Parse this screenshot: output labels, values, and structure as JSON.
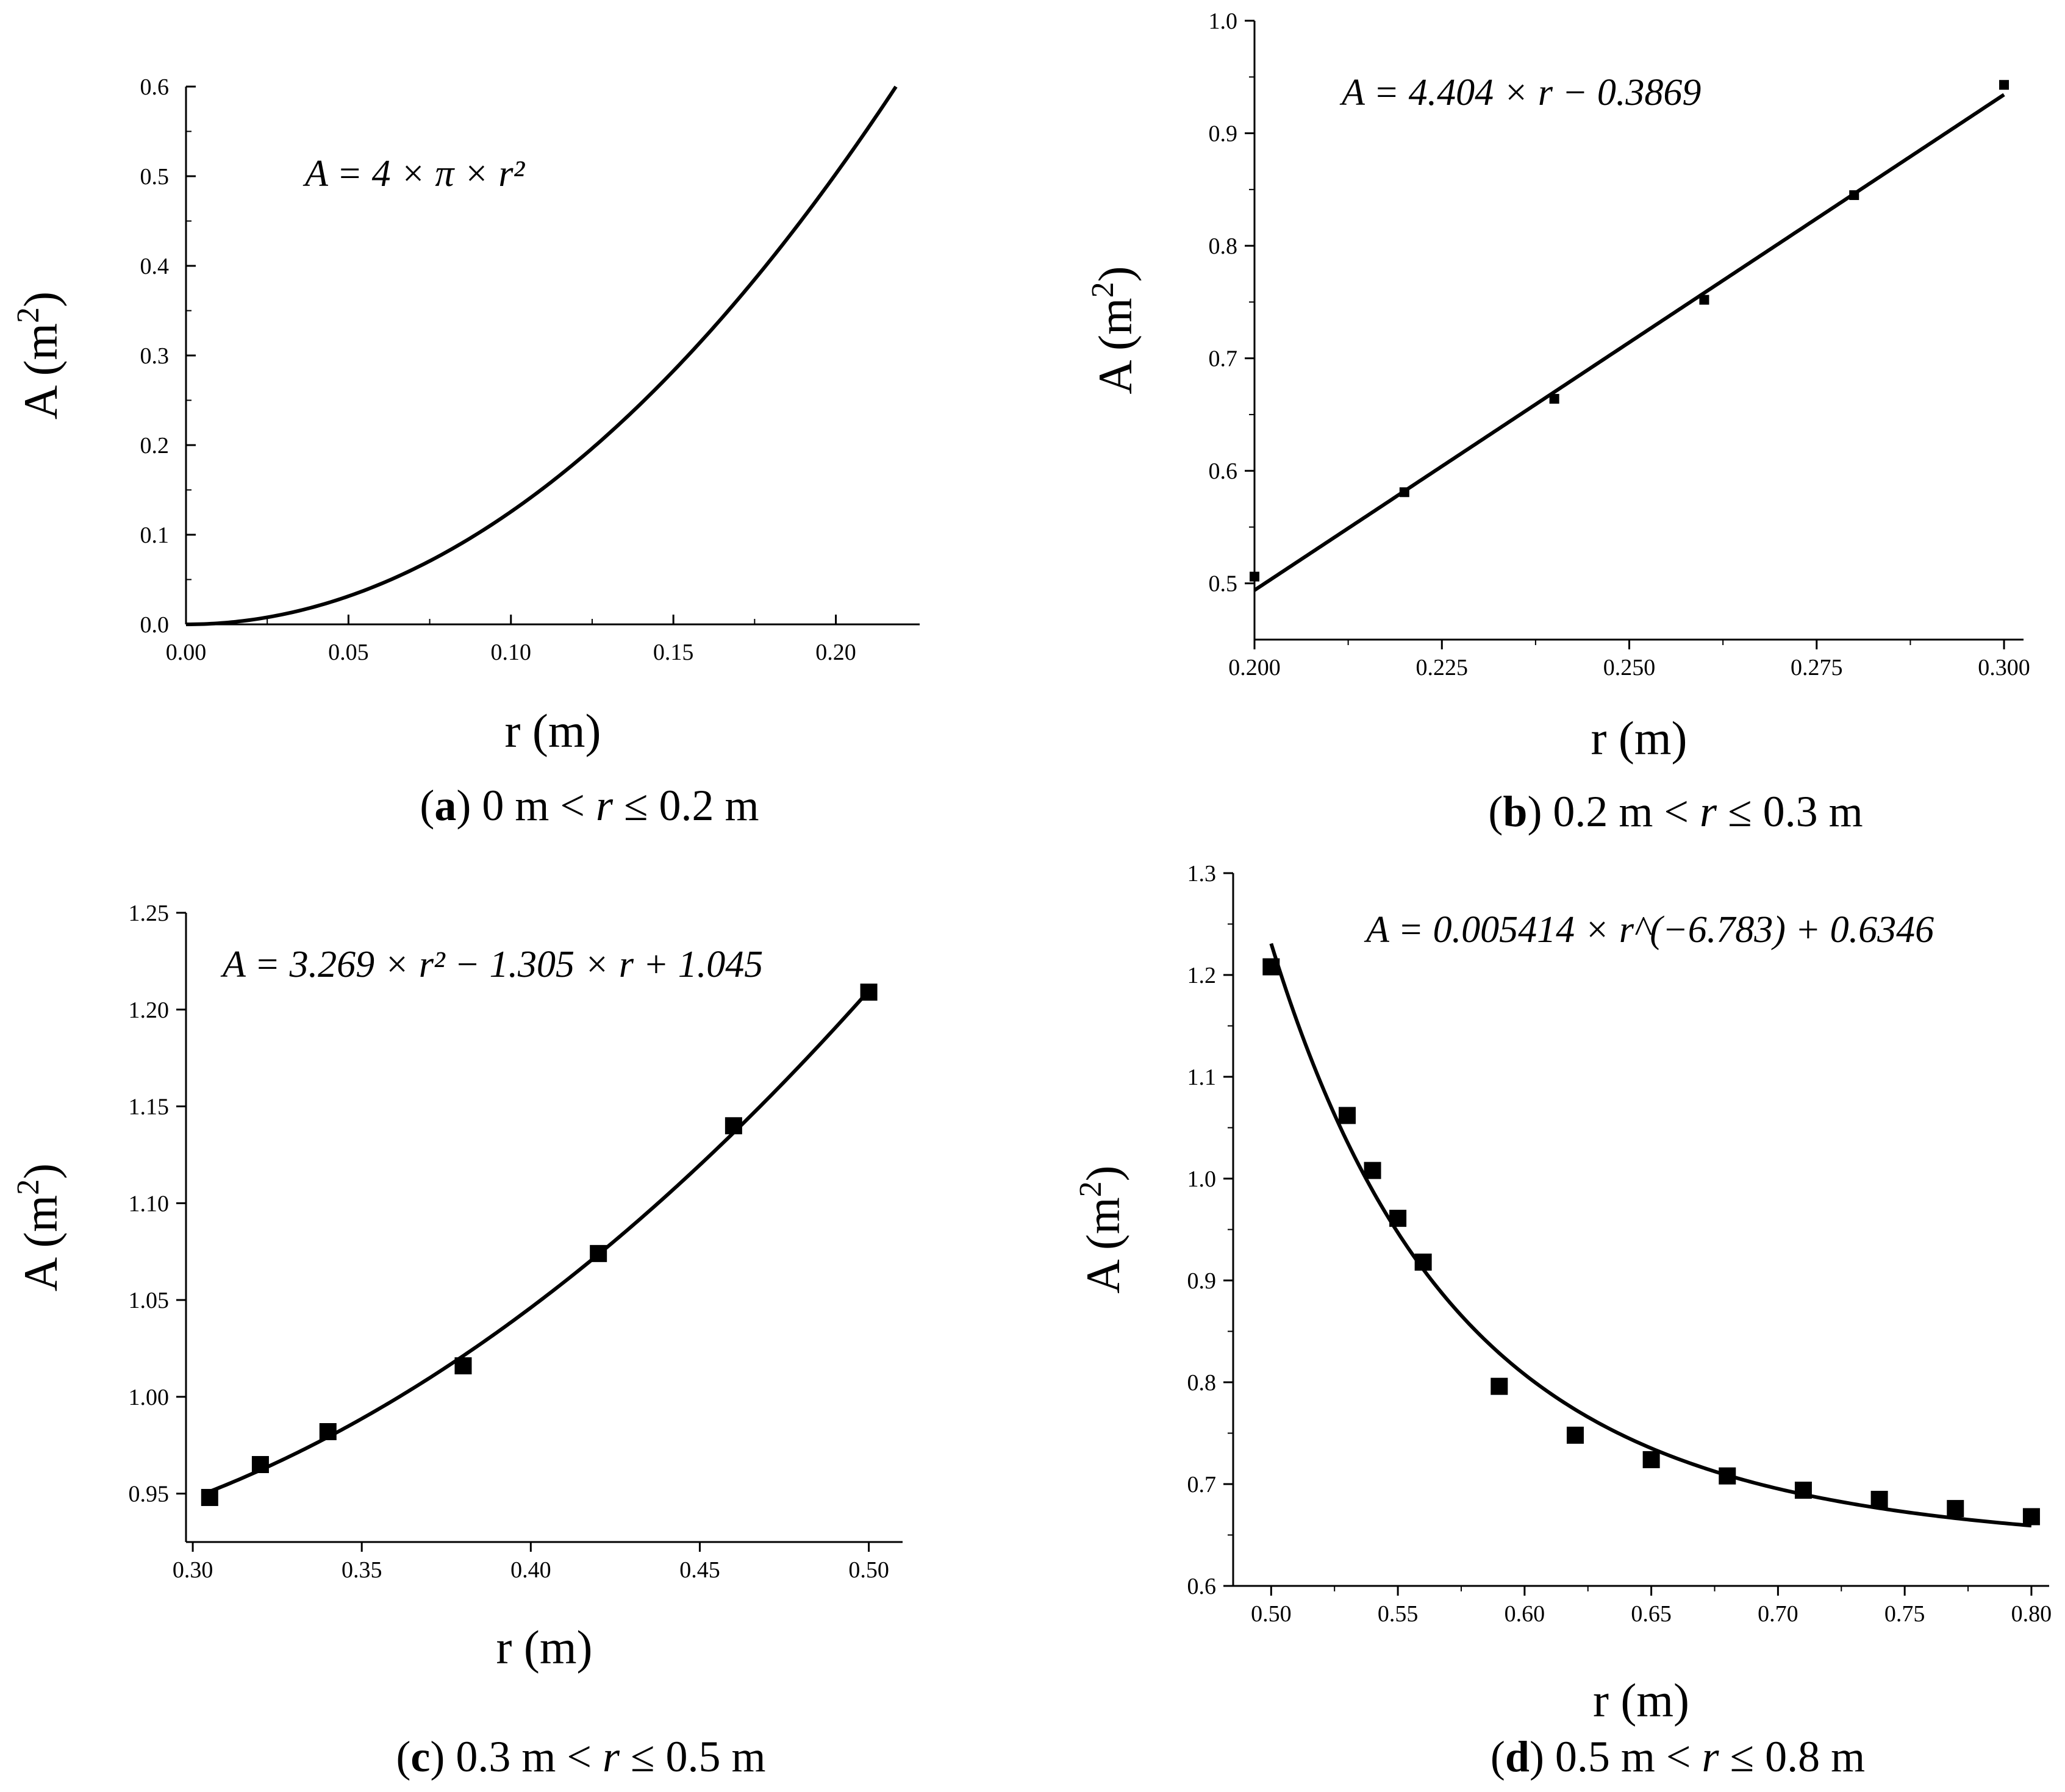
{
  "figure": {
    "background": "#ffffff",
    "ink": "#000000"
  },
  "chart_data": [
    {
      "id": "a",
      "type": "line",
      "title": "",
      "equation": "A = 4 × π × r²",
      "caption": {
        "letter": "a",
        "text": "0 m < r ≤ 0.2 m"
      },
      "xlabel": "r (m)",
      "ylabel": "A (m²)",
      "xlim": [
        0.0,
        0.2258
      ],
      "ylim": [
        0.0,
        0.6
      ],
      "xticks": [
        0.0,
        0.05,
        0.1,
        0.15,
        0.2
      ],
      "xtick_labels": [
        "0.00",
        "0.05",
        "0.10",
        "0.15",
        "0.20"
      ],
      "yticks": [
        0.0,
        0.1,
        0.2,
        0.3,
        0.4,
        0.5,
        0.6
      ],
      "ytick_labels": [
        "0.0",
        "0.1",
        "0.2",
        "0.3",
        "0.4",
        "0.5",
        "0.6"
      ],
      "grid": false,
      "curve": {
        "model": "sphere",
        "coefficients": [
          12.566
        ],
        "x_range": [
          0.0,
          0.2185
        ]
      },
      "points": []
    },
    {
      "id": "b",
      "type": "line",
      "title": "",
      "equation": "A = 4.404 × r − 0.3869",
      "caption": {
        "letter": "b",
        "text": "0.2 m < r ≤ 0.3 m"
      },
      "xlabel": "r (m)",
      "ylabel": "A (m²)",
      "xlim": [
        0.2,
        0.3026
      ],
      "ylim": [
        0.45,
        1.0
      ],
      "xticks": [
        0.2,
        0.225,
        0.25,
        0.275,
        0.3
      ],
      "xtick_labels": [
        "0.200",
        "0.225",
        "0.250",
        "0.275",
        "0.300"
      ],
      "yticks": [
        0.5,
        0.6,
        0.7,
        0.8,
        0.9,
        1.0
      ],
      "ytick_labels": [
        "0.5",
        "0.6",
        "0.7",
        "0.8",
        "0.9",
        "1.0"
      ],
      "grid": false,
      "curve": {
        "model": "linear",
        "coefficients": [
          4.404,
          -0.3869
        ],
        "x_range": [
          0.2,
          0.3
        ]
      },
      "points": [
        {
          "x": 0.2,
          "y": 0.506
        },
        {
          "x": 0.22,
          "y": 0.581
        },
        {
          "x": 0.24,
          "y": 0.664
        },
        {
          "x": 0.26,
          "y": 0.752
        },
        {
          "x": 0.28,
          "y": 0.845
        },
        {
          "x": 0.3,
          "y": 0.943
        }
      ]
    },
    {
      "id": "c",
      "type": "line",
      "title": "",
      "equation": "A = 3.269 × r² − 1.305 × r + 1.045",
      "caption": {
        "letter": "c",
        "text": "0.3 m < r ≤ 0.5 m"
      },
      "xlabel": "r (m)",
      "ylabel": "A (m²)",
      "xlim": [
        0.298,
        0.51
      ],
      "ylim": [
        0.925,
        1.25
      ],
      "xticks": [
        0.3,
        0.35,
        0.4,
        0.45,
        0.5
      ],
      "xtick_labels": [
        "0.30",
        "0.35",
        "0.40",
        "0.45",
        "0.50"
      ],
      "yticks": [
        0.95,
        1.0,
        1.05,
        1.1,
        1.15,
        1.2,
        1.25
      ],
      "ytick_labels": [
        "0.95",
        "1.00",
        "1.05",
        "1.10",
        "1.15",
        "1.20",
        "1.25"
      ],
      "grid": false,
      "curve": {
        "model": "quadratic",
        "coefficients": [
          3.269,
          -1.305,
          1.045
        ],
        "x_range": [
          0.305,
          0.5
        ]
      },
      "points": [
        {
          "x": 0.305,
          "y": 0.948
        },
        {
          "x": 0.32,
          "y": 0.965
        },
        {
          "x": 0.34,
          "y": 0.982
        },
        {
          "x": 0.38,
          "y": 1.016
        },
        {
          "x": 0.42,
          "y": 1.074
        },
        {
          "x": 0.46,
          "y": 1.14
        },
        {
          "x": 0.5,
          "y": 1.209
        }
      ]
    },
    {
      "id": "d",
      "type": "line",
      "title": "",
      "equation": "A = 0.005414 × r^(−6.783) + 0.6346",
      "caption": {
        "letter": "d",
        "text": "0.5 m < r ≤ 0.8 m"
      },
      "xlabel": "r (m)",
      "ylabel": "A (m²)",
      "xlim": [
        0.485,
        0.807
      ],
      "ylim": [
        0.6,
        1.3
      ],
      "xticks": [
        0.5,
        0.55,
        0.6,
        0.65,
        0.7,
        0.75,
        0.8
      ],
      "xtick_labels": [
        "0.50",
        "0.55",
        "0.60",
        "0.65",
        "0.70",
        "0.75",
        "0.80"
      ],
      "yticks": [
        0.6,
        0.7,
        0.8,
        0.9,
        1.0,
        1.1,
        1.2,
        1.3
      ],
      "ytick_labels": [
        "0.6",
        "0.7",
        "0.8",
        "0.9",
        "1.0",
        "1.1",
        "1.2",
        "1.3"
      ],
      "grid": false,
      "curve": {
        "model": "power",
        "coefficients": [
          0.005414,
          -6.783,
          0.6346
        ],
        "x_range": [
          0.5,
          0.8
        ]
      },
      "points": [
        {
          "x": 0.5,
          "y": 1.208
        },
        {
          "x": 0.53,
          "y": 1.062
        },
        {
          "x": 0.54,
          "y": 1.008
        },
        {
          "x": 0.55,
          "y": 0.961
        },
        {
          "x": 0.56,
          "y": 0.918
        },
        {
          "x": 0.59,
          "y": 0.796
        },
        {
          "x": 0.62,
          "y": 0.748
        },
        {
          "x": 0.65,
          "y": 0.724
        },
        {
          "x": 0.68,
          "y": 0.708
        },
        {
          "x": 0.71,
          "y": 0.694
        },
        {
          "x": 0.74,
          "y": 0.685
        },
        {
          "x": 0.77,
          "y": 0.676
        },
        {
          "x": 0.8,
          "y": 0.668
        }
      ]
    }
  ]
}
